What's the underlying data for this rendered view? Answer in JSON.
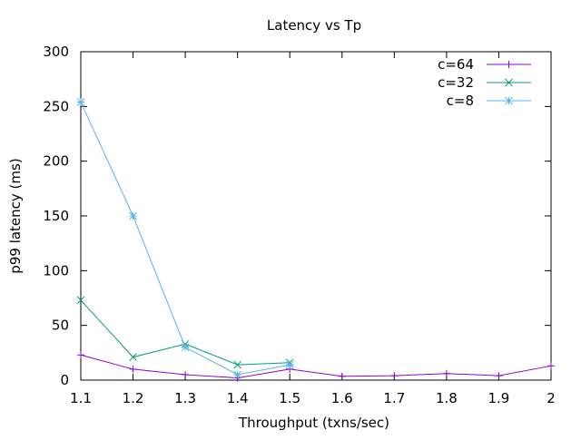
{
  "chart_data": {
    "type": "line",
    "title": "Latency vs Tp",
    "xlabel": "Throughput (txns/sec)",
    "ylabel": "p99 latency (ms)",
    "xlim": [
      1.1,
      2.0
    ],
    "ylim": [
      0,
      300
    ],
    "xticks": [
      "1.1",
      "1.2",
      "1.3",
      "1.4",
      "1.5",
      "1.6",
      "1.7",
      "1.8",
      "1.9",
      "2"
    ],
    "yticks": [
      "0",
      "50",
      "100",
      "150",
      "200",
      "250",
      "300"
    ],
    "grid": false,
    "legend_position": "top-right",
    "series": [
      {
        "name": "c=64",
        "color": "#9400d3",
        "marker": "plus",
        "x": [
          1.1,
          1.2,
          1.3,
          1.4,
          1.5,
          1.6,
          1.7,
          1.8,
          1.9,
          2.0
        ],
        "y": [
          23,
          10,
          5,
          2,
          10,
          3.5,
          4,
          6,
          4,
          13
        ]
      },
      {
        "name": "c=32",
        "color": "#009e73",
        "marker": "cross",
        "x": [
          1.1,
          1.2,
          1.3,
          1.4,
          1.5
        ],
        "y": [
          73,
          21,
          33,
          14,
          16
        ]
      },
      {
        "name": "c=8",
        "color": "#56b4e9",
        "marker": "star",
        "x": [
          1.1,
          1.2,
          1.3,
          1.4,
          1.5
        ],
        "y": [
          254,
          150,
          30,
          5,
          14
        ]
      }
    ]
  }
}
